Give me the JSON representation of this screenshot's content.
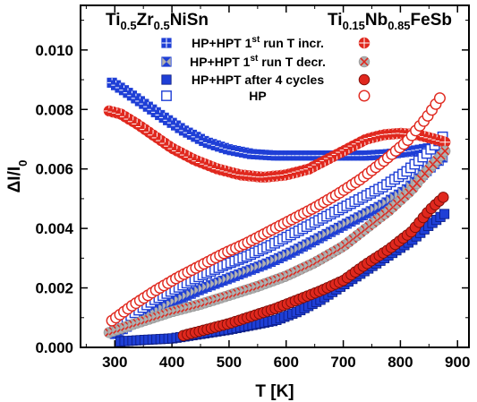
{
  "chart_data": {
    "type": "scatter",
    "title": "",
    "xlabel": "T [K]",
    "ylabel": "ΔI/I0",
    "xlim": [
      240,
      920
    ],
    "ylim": [
      0,
      0.0115
    ],
    "grid": false,
    "x_ticks": [
      300,
      400,
      500,
      600,
      700,
      800,
      900
    ],
    "y_ticks": [
      0.0,
      0.002,
      0.004,
      0.006,
      0.008,
      0.01
    ],
    "x_tick_labels": [
      "300",
      "400",
      "500",
      "600",
      "700",
      "800",
      "900"
    ],
    "y_tick_labels": [
      "0.000",
      "0.002",
      "0.004",
      "0.006",
      "0.008",
      "0.010"
    ],
    "materials": [
      {
        "base": "Ti",
        "parts": [
          [
            "0.5",
            "Zr"
          ],
          [
            "0.5",
            "NiSn"
          ]
        ],
        "color": "#1f3fd6",
        "marker": "square"
      },
      {
        "base": "Ti",
        "parts": [
          [
            "0.15",
            "Nb"
          ],
          [
            "0.85",
            "FeSb"
          ]
        ],
        "color": "#e0281e",
        "marker": "circle"
      }
    ],
    "legend": {
      "placement": "top-center",
      "entries": [
        {
          "label": "HP+HPT 1st run T incr.",
          "style": "incr"
        },
        {
          "label": "HP+HPT 1st run T decr.",
          "style": "decr"
        },
        {
          "label": "HP+HPT after 4 cycles",
          "style": "cycles"
        },
        {
          "label": "HP",
          "style": "hp"
        }
      ]
    },
    "series": [
      {
        "material": "Ti0.5Zr0.5NiSn",
        "style": "incr",
        "marker": "square",
        "points": [
          [
            295,
            0.0089
          ],
          [
            320,
            0.0086
          ],
          [
            350,
            0.0082
          ],
          [
            380,
            0.0078
          ],
          [
            420,
            0.0073
          ],
          [
            460,
            0.0069
          ],
          [
            500,
            0.00665
          ],
          [
            540,
            0.0065
          ],
          [
            580,
            0.00645
          ],
          [
            620,
            0.00645
          ],
          [
            660,
            0.00645
          ],
          [
            700,
            0.00645
          ],
          [
            740,
            0.00645
          ],
          [
            780,
            0.0065
          ],
          [
            820,
            0.0066
          ],
          [
            850,
            0.0067
          ],
          [
            875,
            0.00675
          ]
        ]
      },
      {
        "material": "Ti0.5Zr0.5NiSn",
        "style": "decr",
        "marker": "square",
        "points": [
          [
            300,
            0.00045
          ],
          [
            330,
            0.0008
          ],
          [
            370,
            0.0012
          ],
          [
            410,
            0.0016
          ],
          [
            450,
            0.00195
          ],
          [
            490,
            0.00225
          ],
          [
            530,
            0.00255
          ],
          [
            570,
            0.00285
          ],
          [
            610,
            0.0032
          ],
          [
            650,
            0.0036
          ],
          [
            690,
            0.004
          ],
          [
            730,
            0.0044
          ],
          [
            770,
            0.0048
          ],
          [
            810,
            0.0053
          ],
          [
            850,
            0.006
          ],
          [
            878,
            0.00645
          ]
        ]
      },
      {
        "material": "Ti0.5Zr0.5NiSn",
        "style": "cycles",
        "marker": "square",
        "points": [
          [
            310,
            0.0002
          ],
          [
            350,
            0.00025
          ],
          [
            400,
            0.0003
          ],
          [
            450,
            0.00045
          ],
          [
            500,
            0.0006
          ],
          [
            540,
            0.00075
          ],
          [
            580,
            0.0009
          ],
          [
            620,
            0.0012
          ],
          [
            660,
            0.0016
          ],
          [
            700,
            0.0021
          ],
          [
            740,
            0.0026
          ],
          [
            780,
            0.0031
          ],
          [
            820,
            0.0036
          ],
          [
            850,
            0.0041
          ],
          [
            878,
            0.0045
          ]
        ]
      },
      {
        "material": "Ti0.5Zr0.5NiSn",
        "style": "hp",
        "marker": "square",
        "points": [
          [
            300,
            0.0006
          ],
          [
            330,
            0.0011
          ],
          [
            370,
            0.0016
          ],
          [
            410,
            0.002
          ],
          [
            450,
            0.0024
          ],
          [
            490,
            0.00275
          ],
          [
            530,
            0.00305
          ],
          [
            570,
            0.0034
          ],
          [
            610,
            0.0038
          ],
          [
            650,
            0.0042
          ],
          [
            690,
            0.0046
          ],
          [
            730,
            0.005
          ],
          [
            770,
            0.0054
          ],
          [
            810,
            0.0059
          ],
          [
            845,
            0.0065
          ],
          [
            875,
            0.0071
          ]
        ]
      },
      {
        "material": "Ti0.15Nb0.85FeSb",
        "style": "incr",
        "marker": "circle",
        "points": [
          [
            290,
            0.00795
          ],
          [
            310,
            0.00785
          ],
          [
            340,
            0.0075
          ],
          [
            370,
            0.0071
          ],
          [
            400,
            0.0067
          ],
          [
            440,
            0.0063
          ],
          [
            480,
            0.006
          ],
          [
            520,
            0.0058
          ],
          [
            560,
            0.00572
          ],
          [
            600,
            0.0058
          ],
          [
            640,
            0.006
          ],
          [
            680,
            0.0064
          ],
          [
            710,
            0.0067
          ],
          [
            740,
            0.007
          ],
          [
            770,
            0.00715
          ],
          [
            800,
            0.0072
          ],
          [
            830,
            0.00715
          ],
          [
            860,
            0.007
          ],
          [
            878,
            0.0069
          ]
        ]
      },
      {
        "material": "Ti0.15Nb0.85FeSb",
        "style": "decr",
        "marker": "circle",
        "points": [
          [
            290,
            0.0005
          ],
          [
            320,
            0.0007
          ],
          [
            360,
            0.00095
          ],
          [
            400,
            0.0012
          ],
          [
            450,
            0.00145
          ],
          [
            500,
            0.00175
          ],
          [
            550,
            0.00205
          ],
          [
            600,
            0.0024
          ],
          [
            650,
            0.00285
          ],
          [
            700,
            0.0034
          ],
          [
            740,
            0.004
          ],
          [
            780,
            0.0046
          ],
          [
            820,
            0.0053
          ],
          [
            850,
            0.006
          ],
          [
            878,
            0.0066
          ]
        ]
      },
      {
        "material": "Ti0.15Nb0.85FeSb",
        "style": "cycles",
        "marker": "circle",
        "points": [
          [
            420,
            0.0004
          ],
          [
            460,
            0.0006
          ],
          [
            500,
            0.0008
          ],
          [
            540,
            0.00105
          ],
          [
            580,
            0.0013
          ],
          [
            620,
            0.0016
          ],
          [
            660,
            0.0019
          ],
          [
            700,
            0.00225
          ],
          [
            740,
            0.0028
          ],
          [
            780,
            0.0033
          ],
          [
            820,
            0.0039
          ],
          [
            850,
            0.0046
          ],
          [
            878,
            0.0051
          ]
        ]
      },
      {
        "material": "Ti0.15Nb0.85FeSb",
        "style": "hp",
        "marker": "circle",
        "points": [
          [
            295,
            0.0009
          ],
          [
            330,
            0.0014
          ],
          [
            370,
            0.0019
          ],
          [
            410,
            0.00235
          ],
          [
            450,
            0.00275
          ],
          [
            490,
            0.00315
          ],
          [
            530,
            0.0035
          ],
          [
            570,
            0.0039
          ],
          [
            610,
            0.0043
          ],
          [
            650,
            0.0047
          ],
          [
            690,
            0.00515
          ],
          [
            730,
            0.00565
          ],
          [
            770,
            0.00625
          ],
          [
            810,
            0.0069
          ],
          [
            845,
            0.0077
          ],
          [
            875,
            0.00855
          ]
        ]
      }
    ]
  }
}
